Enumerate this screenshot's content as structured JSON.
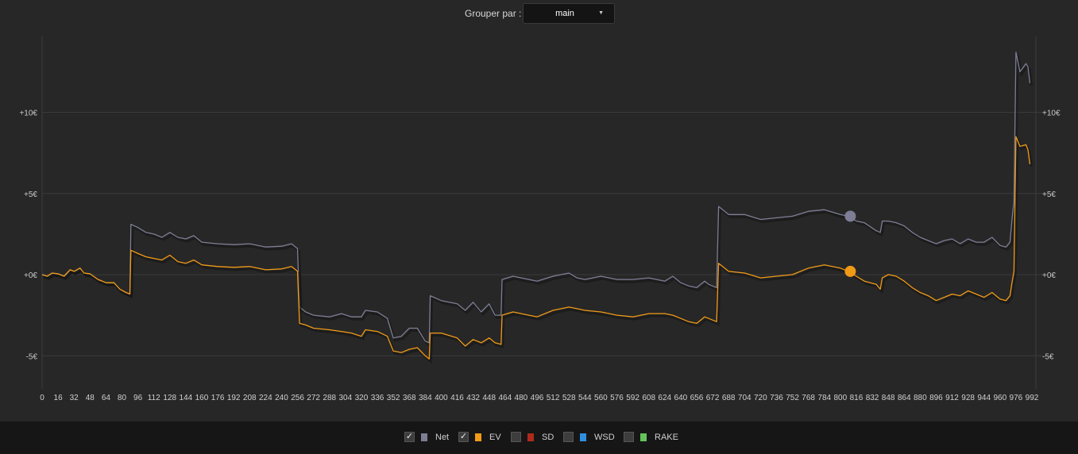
{
  "toolbar": {
    "group_label": "Grouper par :",
    "group_value": "main"
  },
  "legend": [
    {
      "label": "Net",
      "checked": true,
      "color": "#7d7d95"
    },
    {
      "label": "EV",
      "checked": true,
      "color": "#f19a16"
    },
    {
      "label": "SD",
      "checked": false,
      "color": "#b02a1c"
    },
    {
      "label": "WSD",
      "checked": false,
      "color": "#2f8fe0"
    },
    {
      "label": "RAKE",
      "checked": false,
      "color": "#62c45a"
    }
  ],
  "chart_data": {
    "type": "line",
    "xlim": [
      0,
      992
    ],
    "ylim": [
      -7,
      14
    ],
    "y_ticks": [
      {
        "value": 10,
        "label": "+10€"
      },
      {
        "value": 5,
        "label": "+5€"
      },
      {
        "value": 0,
        "label": "+0€"
      },
      {
        "value": -5,
        "label": "-5€"
      }
    ],
    "x_tick_step": 16,
    "grid": true,
    "series": [
      {
        "name": "Net",
        "color": "#7d7d95",
        "points": [
          [
            0,
            0
          ],
          [
            5,
            -0.1
          ],
          [
            10,
            0.1
          ],
          [
            16,
            0.05
          ],
          [
            22,
            -0.1
          ],
          [
            28,
            0.3
          ],
          [
            32,
            0.2
          ],
          [
            38,
            0.4
          ],
          [
            42,
            0.1
          ],
          [
            48,
            0.05
          ],
          [
            56,
            -0.3
          ],
          [
            64,
            -0.5
          ],
          [
            72,
            -0.5
          ],
          [
            78,
            -0.9
          ],
          [
            84,
            -1.1
          ],
          [
            88,
            -1.2
          ],
          [
            89,
            3.1
          ],
          [
            96,
            2.9
          ],
          [
            104,
            2.6
          ],
          [
            112,
            2.5
          ],
          [
            120,
            2.3
          ],
          [
            128,
            2.6
          ],
          [
            136,
            2.3
          ],
          [
            144,
            2.2
          ],
          [
            152,
            2.4
          ],
          [
            160,
            2.0
          ],
          [
            176,
            1.9
          ],
          [
            192,
            1.85
          ],
          [
            208,
            1.9
          ],
          [
            224,
            1.7
          ],
          [
            240,
            1.75
          ],
          [
            250,
            1.9
          ],
          [
            256,
            1.6
          ],
          [
            258,
            -2.0
          ],
          [
            264,
            -2.3
          ],
          [
            272,
            -2.5
          ],
          [
            288,
            -2.6
          ],
          [
            300,
            -2.4
          ],
          [
            310,
            -2.6
          ],
          [
            320,
            -2.6
          ],
          [
            324,
            -2.2
          ],
          [
            336,
            -2.3
          ],
          [
            346,
            -2.7
          ],
          [
            352,
            -3.9
          ],
          [
            360,
            -3.8
          ],
          [
            368,
            -3.3
          ],
          [
            376,
            -3.3
          ],
          [
            384,
            -4.1
          ],
          [
            388,
            -4.2
          ],
          [
            389,
            -1.3
          ],
          [
            400,
            -1.6
          ],
          [
            416,
            -1.8
          ],
          [
            424,
            -2.2
          ],
          [
            432,
            -1.7
          ],
          [
            440,
            -2.3
          ],
          [
            448,
            -1.8
          ],
          [
            454,
            -2.5
          ],
          [
            460,
            -2.5
          ],
          [
            461,
            -0.3
          ],
          [
            472,
            -0.1
          ],
          [
            480,
            -0.2
          ],
          [
            496,
            -0.4
          ],
          [
            512,
            -0.1
          ],
          [
            528,
            0.1
          ],
          [
            536,
            -0.2
          ],
          [
            544,
            -0.3
          ],
          [
            560,
            -0.1
          ],
          [
            576,
            -0.3
          ],
          [
            592,
            -0.3
          ],
          [
            608,
            -0.2
          ],
          [
            624,
            -0.4
          ],
          [
            632,
            -0.1
          ],
          [
            640,
            -0.5
          ],
          [
            648,
            -0.7
          ],
          [
            656,
            -0.8
          ],
          [
            664,
            -0.4
          ],
          [
            668,
            -0.6
          ],
          [
            676,
            -0.8
          ],
          [
            678,
            4.2
          ],
          [
            688,
            3.7
          ],
          [
            704,
            3.7
          ],
          [
            720,
            3.4
          ],
          [
            736,
            3.5
          ],
          [
            752,
            3.6
          ],
          [
            768,
            3.9
          ],
          [
            784,
            4.0
          ],
          [
            800,
            3.7
          ],
          [
            808,
            3.6
          ],
          [
            816,
            3.3
          ],
          [
            824,
            3.2
          ],
          [
            836,
            2.7
          ],
          [
            840,
            2.6
          ],
          [
            842,
            3.3
          ],
          [
            848,
            3.3
          ],
          [
            856,
            3.2
          ],
          [
            864,
            3.0
          ],
          [
            872,
            2.6
          ],
          [
            880,
            2.3
          ],
          [
            888,
            2.1
          ],
          [
            896,
            1.9
          ],
          [
            904,
            2.1
          ],
          [
            912,
            2.2
          ],
          [
            920,
            1.9
          ],
          [
            928,
            2.2
          ],
          [
            936,
            2.0
          ],
          [
            944,
            2.0
          ],
          [
            952,
            2.3
          ],
          [
            960,
            1.8
          ],
          [
            966,
            1.7
          ],
          [
            970,
            2.0
          ],
          [
            972,
            3.4
          ],
          [
            974,
            4.5
          ],
          [
            976,
            13.7
          ],
          [
            980,
            12.5
          ],
          [
            986,
            13.0
          ],
          [
            988,
            12.8
          ],
          [
            990,
            11.8
          ]
        ]
      },
      {
        "name": "EV",
        "color": "#f19a16",
        "points": [
          [
            0,
            0
          ],
          [
            5,
            -0.1
          ],
          [
            10,
            0.1
          ],
          [
            16,
            0.05
          ],
          [
            22,
            -0.1
          ],
          [
            28,
            0.3
          ],
          [
            32,
            0.2
          ],
          [
            38,
            0.4
          ],
          [
            42,
            0.1
          ],
          [
            48,
            0.05
          ],
          [
            56,
            -0.3
          ],
          [
            64,
            -0.5
          ],
          [
            72,
            -0.5
          ],
          [
            78,
            -0.9
          ],
          [
            84,
            -1.1
          ],
          [
            88,
            -1.2
          ],
          [
            89,
            1.5
          ],
          [
            96,
            1.3
          ],
          [
            104,
            1.1
          ],
          [
            112,
            1.0
          ],
          [
            120,
            0.9
          ],
          [
            128,
            1.2
          ],
          [
            136,
            0.8
          ],
          [
            144,
            0.7
          ],
          [
            152,
            0.9
          ],
          [
            160,
            0.6
          ],
          [
            176,
            0.5
          ],
          [
            192,
            0.45
          ],
          [
            208,
            0.5
          ],
          [
            224,
            0.3
          ],
          [
            240,
            0.35
          ],
          [
            250,
            0.5
          ],
          [
            256,
            0.2
          ],
          [
            258,
            -3.0
          ],
          [
            264,
            -3.1
          ],
          [
            272,
            -3.3
          ],
          [
            288,
            -3.4
          ],
          [
            300,
            -3.5
          ],
          [
            310,
            -3.6
          ],
          [
            320,
            -3.8
          ],
          [
            324,
            -3.4
          ],
          [
            336,
            -3.5
          ],
          [
            346,
            -3.8
          ],
          [
            352,
            -4.7
          ],
          [
            360,
            -4.8
          ],
          [
            368,
            -4.6
          ],
          [
            376,
            -4.5
          ],
          [
            384,
            -5.0
          ],
          [
            388,
            -5.2
          ],
          [
            389,
            -3.6
          ],
          [
            400,
            -3.6
          ],
          [
            416,
            -3.9
          ],
          [
            424,
            -4.4
          ],
          [
            432,
            -4.0
          ],
          [
            440,
            -4.2
          ],
          [
            448,
            -3.9
          ],
          [
            454,
            -4.2
          ],
          [
            460,
            -4.3
          ],
          [
            461,
            -2.5
          ],
          [
            472,
            -2.3
          ],
          [
            480,
            -2.4
          ],
          [
            496,
            -2.6
          ],
          [
            512,
            -2.2
          ],
          [
            528,
            -2.0
          ],
          [
            536,
            -2.1
          ],
          [
            544,
            -2.2
          ],
          [
            560,
            -2.3
          ],
          [
            576,
            -2.5
          ],
          [
            592,
            -2.6
          ],
          [
            608,
            -2.4
          ],
          [
            624,
            -2.4
          ],
          [
            632,
            -2.5
          ],
          [
            640,
            -2.7
          ],
          [
            648,
            -2.9
          ],
          [
            656,
            -3.0
          ],
          [
            664,
            -2.6
          ],
          [
            668,
            -2.7
          ],
          [
            676,
            -2.9
          ],
          [
            678,
            0.7
          ],
          [
            688,
            0.2
          ],
          [
            704,
            0.1
          ],
          [
            720,
            -0.2
          ],
          [
            736,
            -0.1
          ],
          [
            752,
            0.0
          ],
          [
            768,
            0.4
          ],
          [
            784,
            0.6
          ],
          [
            800,
            0.4
          ],
          [
            808,
            0.2
          ],
          [
            816,
            -0.1
          ],
          [
            824,
            -0.4
          ],
          [
            836,
            -0.6
          ],
          [
            840,
            -0.9
          ],
          [
            842,
            -0.2
          ],
          [
            848,
            0.0
          ],
          [
            856,
            -0.1
          ],
          [
            864,
            -0.4
          ],
          [
            872,
            -0.8
          ],
          [
            880,
            -1.1
          ],
          [
            888,
            -1.3
          ],
          [
            896,
            -1.6
          ],
          [
            904,
            -1.4
          ],
          [
            912,
            -1.2
          ],
          [
            920,
            -1.3
          ],
          [
            928,
            -1.0
          ],
          [
            936,
            -1.2
          ],
          [
            944,
            -1.4
          ],
          [
            952,
            -1.1
          ],
          [
            960,
            -1.5
          ],
          [
            966,
            -1.6
          ],
          [
            970,
            -1.3
          ],
          [
            972,
            -0.5
          ],
          [
            974,
            0.2
          ],
          [
            976,
            8.5
          ],
          [
            980,
            7.9
          ],
          [
            986,
            8.0
          ],
          [
            988,
            7.7
          ],
          [
            990,
            6.8
          ]
        ]
      }
    ],
    "markers": [
      {
        "series": "Net",
        "x": 810,
        "y": 3.6
      },
      {
        "series": "EV",
        "x": 810,
        "y": 0.2
      }
    ]
  }
}
